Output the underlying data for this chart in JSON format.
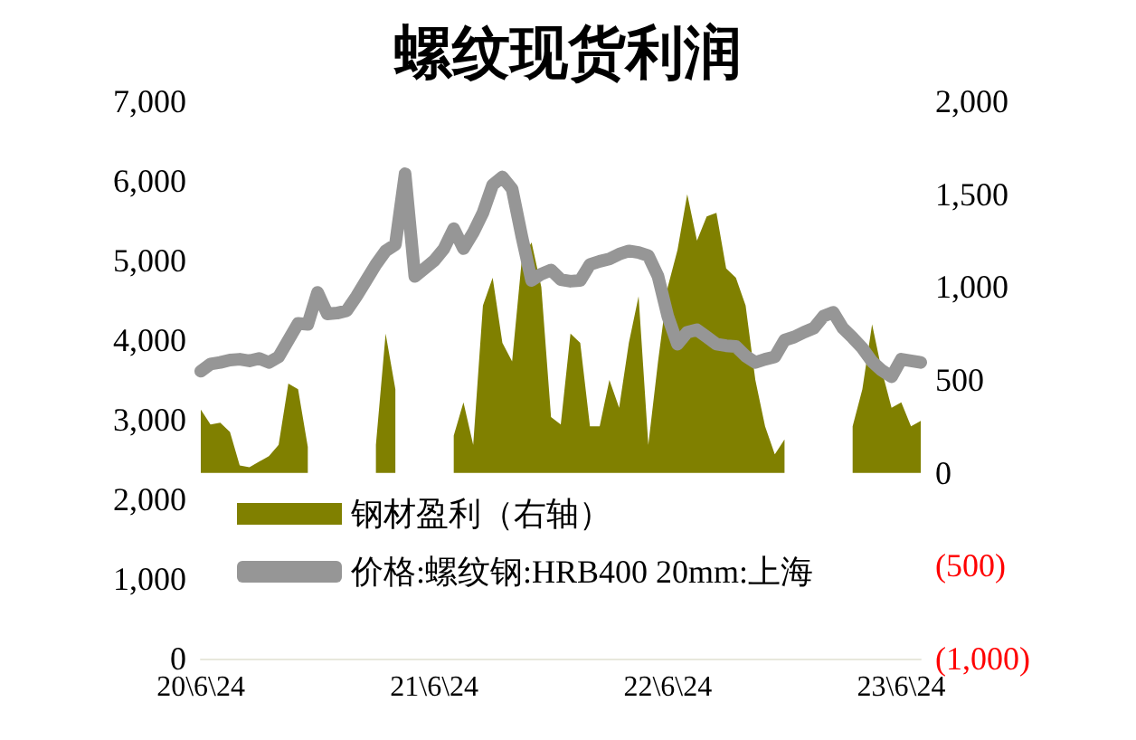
{
  "chart_data": {
    "type": "line",
    "title": "螺纹现货利润",
    "categories": [
      "20\\6\\24",
      null,
      null,
      null,
      null,
      null,
      null,
      null,
      null,
      null,
      null,
      null,
      null,
      null,
      null,
      null,
      null,
      null,
      null,
      null,
      null,
      null,
      null,
      null,
      "21\\6\\24",
      null,
      null,
      null,
      null,
      null,
      null,
      null,
      null,
      null,
      null,
      null,
      null,
      null,
      null,
      null,
      null,
      null,
      null,
      null,
      null,
      null,
      null,
      null,
      "22\\6\\24",
      null,
      null,
      null,
      null,
      null,
      null,
      null,
      null,
      null,
      null,
      null,
      null,
      null,
      null,
      null,
      null,
      null,
      null,
      null,
      null,
      null,
      null,
      null,
      "23\\6\\24",
      null,
      null
    ],
    "series": [
      {
        "name": "钢材盈利（右轴）",
        "type": "area",
        "axis": "y2",
        "color": "#808000",
        "values": [
          340,
          260,
          270,
          220,
          40,
          30,
          60,
          90,
          150,
          480,
          450,
          140,
          null,
          null,
          null,
          null,
          null,
          null,
          150,
          750,
          450,
          null,
          null,
          null,
          null,
          null,
          200,
          380,
          150,
          900,
          1050,
          700,
          600,
          1150,
          1240,
          1000,
          300,
          260,
          750,
          700,
          250,
          250,
          500,
          350,
          700,
          950,
          150,
          600,
          1000,
          1200,
          1500,
          1250,
          1380,
          1400,
          1100,
          1050,
          900,
          500,
          250,
          100,
          180,
          null,
          null,
          null,
          null,
          null,
          null,
          250,
          450,
          800,
          550,
          350,
          380,
          250,
          280
        ]
      },
      {
        "name": "价格:螺纹钢:HRB400 20mm:上海",
        "color": "#969696",
        "values": [
          3610,
          3700,
          3720,
          3750,
          3760,
          3740,
          3770,
          3720,
          3790,
          4000,
          4210,
          4200,
          4600,
          4330,
          4340,
          4370,
          4550,
          4750,
          4950,
          5120,
          5200,
          6090,
          4800,
          4900,
          5000,
          5150,
          5400,
          5150,
          5350,
          5600,
          5950,
          6050,
          5900,
          5300,
          4750,
          4830,
          4880,
          4760,
          4740,
          4750,
          4950,
          4990,
          5020,
          5080,
          5120,
          5100,
          5060,
          4800,
          4300,
          3950,
          4100,
          4130,
          4040,
          3950,
          3930,
          3920,
          3800,
          3720,
          3760,
          3790,
          4000,
          4040,
          4100,
          4150,
          4300,
          4350,
          4150,
          4030,
          3900,
          3730,
          3620,
          3540,
          3760,
          3740,
          3720
        ]
      }
    ],
    "ylim": [
      0,
      7000
    ],
    "yticks": [
      {
        "value": 0,
        "label": "0"
      },
      {
        "value": 1000,
        "label": "1,000"
      },
      {
        "value": 2000,
        "label": "2,000"
      },
      {
        "value": 3000,
        "label": "3,000"
      },
      {
        "value": 4000,
        "label": "4,000"
      },
      {
        "value": 5000,
        "label": "5,000"
      },
      {
        "value": 6000,
        "label": "6,000"
      },
      {
        "value": 7000,
        "label": "7,000"
      }
    ],
    "y2lim": [
      -1000,
      2000
    ],
    "y2ticks": [
      {
        "value": -1000,
        "label": "(1,000)"
      },
      {
        "value": -500,
        "label": "(500)"
      },
      {
        "value": 0,
        "label": "0"
      },
      {
        "value": 500,
        "label": "500"
      },
      {
        "value": 1000,
        "label": "1,000"
      },
      {
        "value": 1500,
        "label": "1,500"
      },
      {
        "value": 2000,
        "label": "2,000"
      }
    ],
    "grid": false,
    "legend": "bottom",
    "marker": "none",
    "line_style": "solid"
  }
}
